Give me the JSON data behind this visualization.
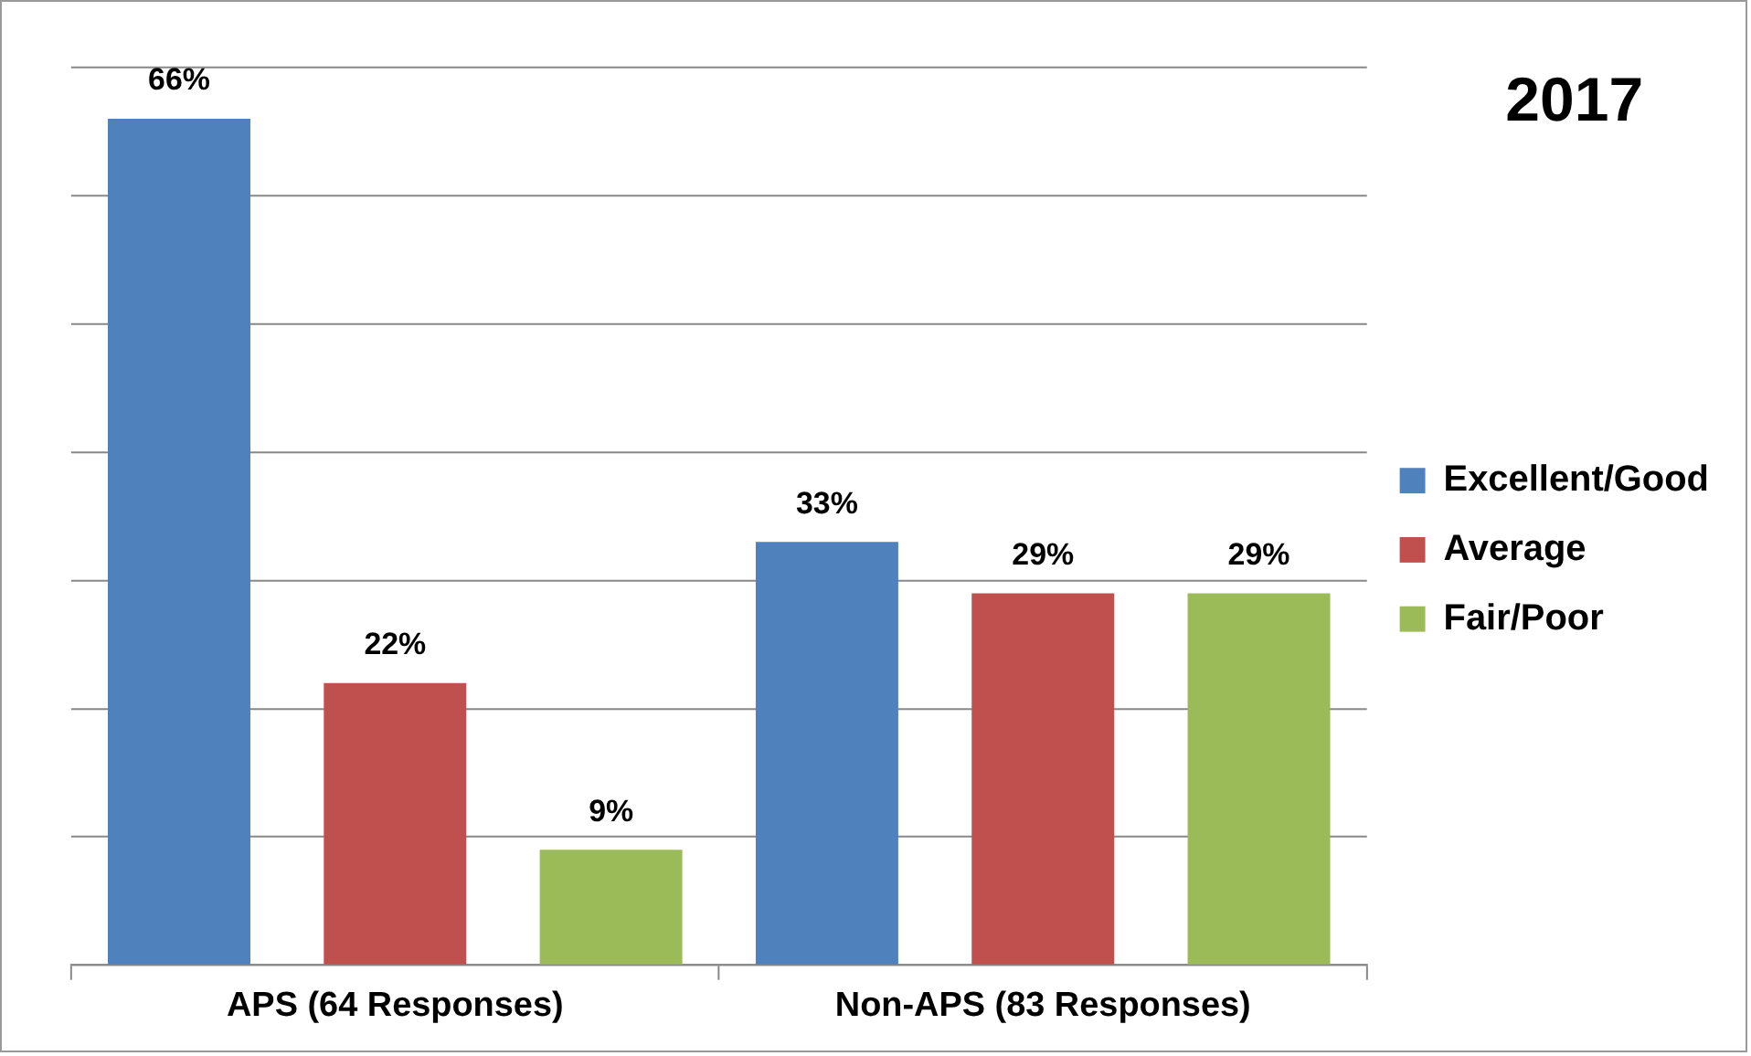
{
  "chart_data": {
    "type": "bar",
    "title": "2017",
    "categories": [
      "APS (64 Responses)",
      "Non-APS (83 Responses)"
    ],
    "series": [
      {
        "name": "Excellent/Good",
        "color": "#4f81bd",
        "values": [
          66,
          33
        ],
        "value_labels": [
          "66%",
          "33%"
        ]
      },
      {
        "name": "Average",
        "color": "#c0504d",
        "values": [
          22,
          29
        ],
        "value_labels": [
          "22%",
          "29%"
        ]
      },
      {
        "name": "Fair/Poor",
        "color": "#9bbb59",
        "values": [
          9,
          29
        ],
        "value_labels": [
          "9%",
          "29%"
        ]
      }
    ],
    "tick_labels": "x",
    "grid": "y",
    "legend": "right"
  }
}
